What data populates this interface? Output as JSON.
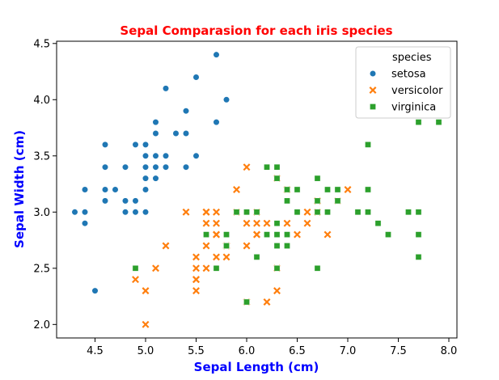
{
  "chart_data": {
    "type": "scatter",
    "title": "Sepal Comparasion for each iris species",
    "title_color": "#ff0000",
    "xlabel": "Sepal Length (cm)",
    "ylabel": "Sepal Width (cm)",
    "axis_label_color": "#0000ff",
    "xlim": [
      4.12,
      8.08
    ],
    "ylim": [
      1.88,
      4.52
    ],
    "xticks": [
      4.5,
      5.0,
      5.5,
      6.0,
      6.5,
      7.0,
      7.5,
      8.0
    ],
    "yticks": [
      2.0,
      2.5,
      3.0,
      3.5,
      4.0,
      4.5
    ],
    "xtick_labels": [
      "4.5",
      "5.0",
      "5.5",
      "6.0",
      "6.5",
      "7.0",
      "7.5",
      "8.0"
    ],
    "ytick_labels": [
      "2.0",
      "2.5",
      "3.0",
      "3.5",
      "4.0",
      "4.5"
    ],
    "grid": false,
    "legend": {
      "title": "species",
      "placement": "upper right",
      "entries": [
        {
          "label": "setosa",
          "marker": "circle",
          "color": "#1f77b4"
        },
        {
          "label": "versicolor",
          "marker": "x",
          "color": "#ff7f0e"
        },
        {
          "label": "virginica",
          "marker": "square",
          "color": "#2ca02c"
        }
      ]
    },
    "series": [
      {
        "name": "setosa",
        "marker": "circle",
        "color": "#1f77b4",
        "points": [
          [
            5.1,
            3.5
          ],
          [
            4.9,
            3.0
          ],
          [
            4.7,
            3.2
          ],
          [
            4.6,
            3.1
          ],
          [
            5.0,
            3.6
          ],
          [
            5.4,
            3.9
          ],
          [
            4.6,
            3.4
          ],
          [
            5.0,
            3.4
          ],
          [
            4.4,
            2.9
          ],
          [
            4.9,
            3.1
          ],
          [
            5.4,
            3.7
          ],
          [
            4.8,
            3.4
          ],
          [
            4.8,
            3.0
          ],
          [
            4.3,
            3.0
          ],
          [
            5.8,
            4.0
          ],
          [
            5.7,
            4.4
          ],
          [
            5.4,
            3.9
          ],
          [
            5.1,
            3.5
          ],
          [
            5.7,
            3.8
          ],
          [
            5.1,
            3.8
          ],
          [
            5.4,
            3.4
          ],
          [
            5.1,
            3.7
          ],
          [
            4.6,
            3.6
          ],
          [
            5.1,
            3.3
          ],
          [
            4.8,
            3.4
          ],
          [
            5.0,
            3.0
          ],
          [
            5.0,
            3.4
          ],
          [
            5.2,
            3.5
          ],
          [
            5.2,
            3.4
          ],
          [
            4.7,
            3.2
          ],
          [
            4.8,
            3.1
          ],
          [
            5.4,
            3.4
          ],
          [
            5.2,
            4.1
          ],
          [
            5.5,
            4.2
          ],
          [
            4.9,
            3.1
          ],
          [
            5.0,
            3.2
          ],
          [
            5.5,
            3.5
          ],
          [
            4.9,
            3.6
          ],
          [
            4.4,
            3.0
          ],
          [
            5.1,
            3.4
          ],
          [
            5.0,
            3.5
          ],
          [
            4.5,
            2.3
          ],
          [
            4.4,
            3.2
          ],
          [
            5.0,
            3.5
          ],
          [
            5.1,
            3.8
          ],
          [
            4.8,
            3.0
          ],
          [
            5.1,
            3.8
          ],
          [
            4.6,
            3.2
          ],
          [
            5.3,
            3.7
          ],
          [
            5.0,
            3.3
          ]
        ]
      },
      {
        "name": "versicolor",
        "marker": "x",
        "color": "#ff7f0e",
        "points": [
          [
            7.0,
            3.2
          ],
          [
            6.4,
            3.2
          ],
          [
            6.9,
            3.1
          ],
          [
            5.5,
            2.3
          ],
          [
            6.5,
            2.8
          ],
          [
            5.7,
            2.8
          ],
          [
            6.3,
            3.3
          ],
          [
            4.9,
            2.4
          ],
          [
            6.6,
            2.9
          ],
          [
            5.2,
            2.7
          ],
          [
            5.0,
            2.0
          ],
          [
            5.9,
            3.0
          ],
          [
            6.0,
            2.2
          ],
          [
            6.1,
            2.9
          ],
          [
            5.6,
            2.9
          ],
          [
            6.7,
            3.1
          ],
          [
            5.6,
            3.0
          ],
          [
            5.8,
            2.7
          ],
          [
            6.2,
            2.2
          ],
          [
            5.6,
            2.5
          ],
          [
            5.9,
            3.2
          ],
          [
            6.1,
            2.8
          ],
          [
            6.3,
            2.5
          ],
          [
            6.1,
            2.8
          ],
          [
            6.4,
            2.9
          ],
          [
            6.6,
            3.0
          ],
          [
            6.8,
            2.8
          ],
          [
            6.7,
            3.0
          ],
          [
            6.0,
            2.9
          ],
          [
            5.7,
            2.6
          ],
          [
            5.5,
            2.4
          ],
          [
            5.5,
            2.4
          ],
          [
            5.8,
            2.7
          ],
          [
            6.0,
            2.7
          ],
          [
            5.4,
            3.0
          ],
          [
            6.0,
            3.4
          ],
          [
            6.7,
            3.1
          ],
          [
            6.3,
            2.3
          ],
          [
            5.6,
            3.0
          ],
          [
            5.5,
            2.5
          ],
          [
            5.5,
            2.6
          ],
          [
            6.1,
            3.0
          ],
          [
            5.8,
            2.6
          ],
          [
            5.0,
            2.3
          ],
          [
            5.6,
            2.7
          ],
          [
            5.7,
            3.0
          ],
          [
            5.7,
            2.9
          ],
          [
            6.2,
            2.9
          ],
          [
            5.1,
            2.5
          ],
          [
            5.7,
            2.8
          ]
        ]
      },
      {
        "name": "virginica",
        "marker": "square",
        "color": "#2ca02c",
        "points": [
          [
            6.3,
            3.3
          ],
          [
            5.8,
            2.7
          ],
          [
            7.1,
            3.0
          ],
          [
            6.3,
            2.9
          ],
          [
            6.5,
            3.0
          ],
          [
            7.6,
            3.0
          ],
          [
            4.9,
            2.5
          ],
          [
            7.3,
            2.9
          ],
          [
            6.7,
            2.5
          ],
          [
            7.2,
            3.6
          ],
          [
            6.5,
            3.2
          ],
          [
            6.4,
            2.7
          ],
          [
            6.8,
            3.0
          ],
          [
            5.7,
            2.5
          ],
          [
            5.8,
            2.8
          ],
          [
            6.4,
            3.2
          ],
          [
            6.5,
            3.0
          ],
          [
            7.7,
            3.8
          ],
          [
            7.7,
            2.6
          ],
          [
            6.0,
            2.2
          ],
          [
            6.9,
            3.2
          ],
          [
            5.6,
            2.8
          ],
          [
            7.7,
            2.8
          ],
          [
            6.3,
            2.7
          ],
          [
            6.7,
            3.3
          ],
          [
            7.2,
            3.2
          ],
          [
            6.2,
            2.8
          ],
          [
            6.1,
            3.0
          ],
          [
            6.4,
            2.8
          ],
          [
            7.2,
            3.0
          ],
          [
            7.4,
            2.8
          ],
          [
            7.9,
            3.8
          ],
          [
            6.4,
            2.8
          ],
          [
            6.3,
            2.8
          ],
          [
            6.1,
            2.6
          ],
          [
            7.7,
            3.0
          ],
          [
            6.3,
            3.4
          ],
          [
            6.4,
            3.1
          ],
          [
            6.0,
            3.0
          ],
          [
            6.9,
            3.1
          ],
          [
            6.7,
            3.1
          ],
          [
            6.9,
            3.1
          ],
          [
            5.8,
            2.7
          ],
          [
            6.8,
            3.2
          ],
          [
            6.7,
            3.3
          ],
          [
            6.7,
            3.0
          ],
          [
            6.3,
            2.5
          ],
          [
            6.5,
            3.0
          ],
          [
            6.2,
            3.4
          ],
          [
            5.9,
            3.0
          ]
        ]
      }
    ]
  }
}
